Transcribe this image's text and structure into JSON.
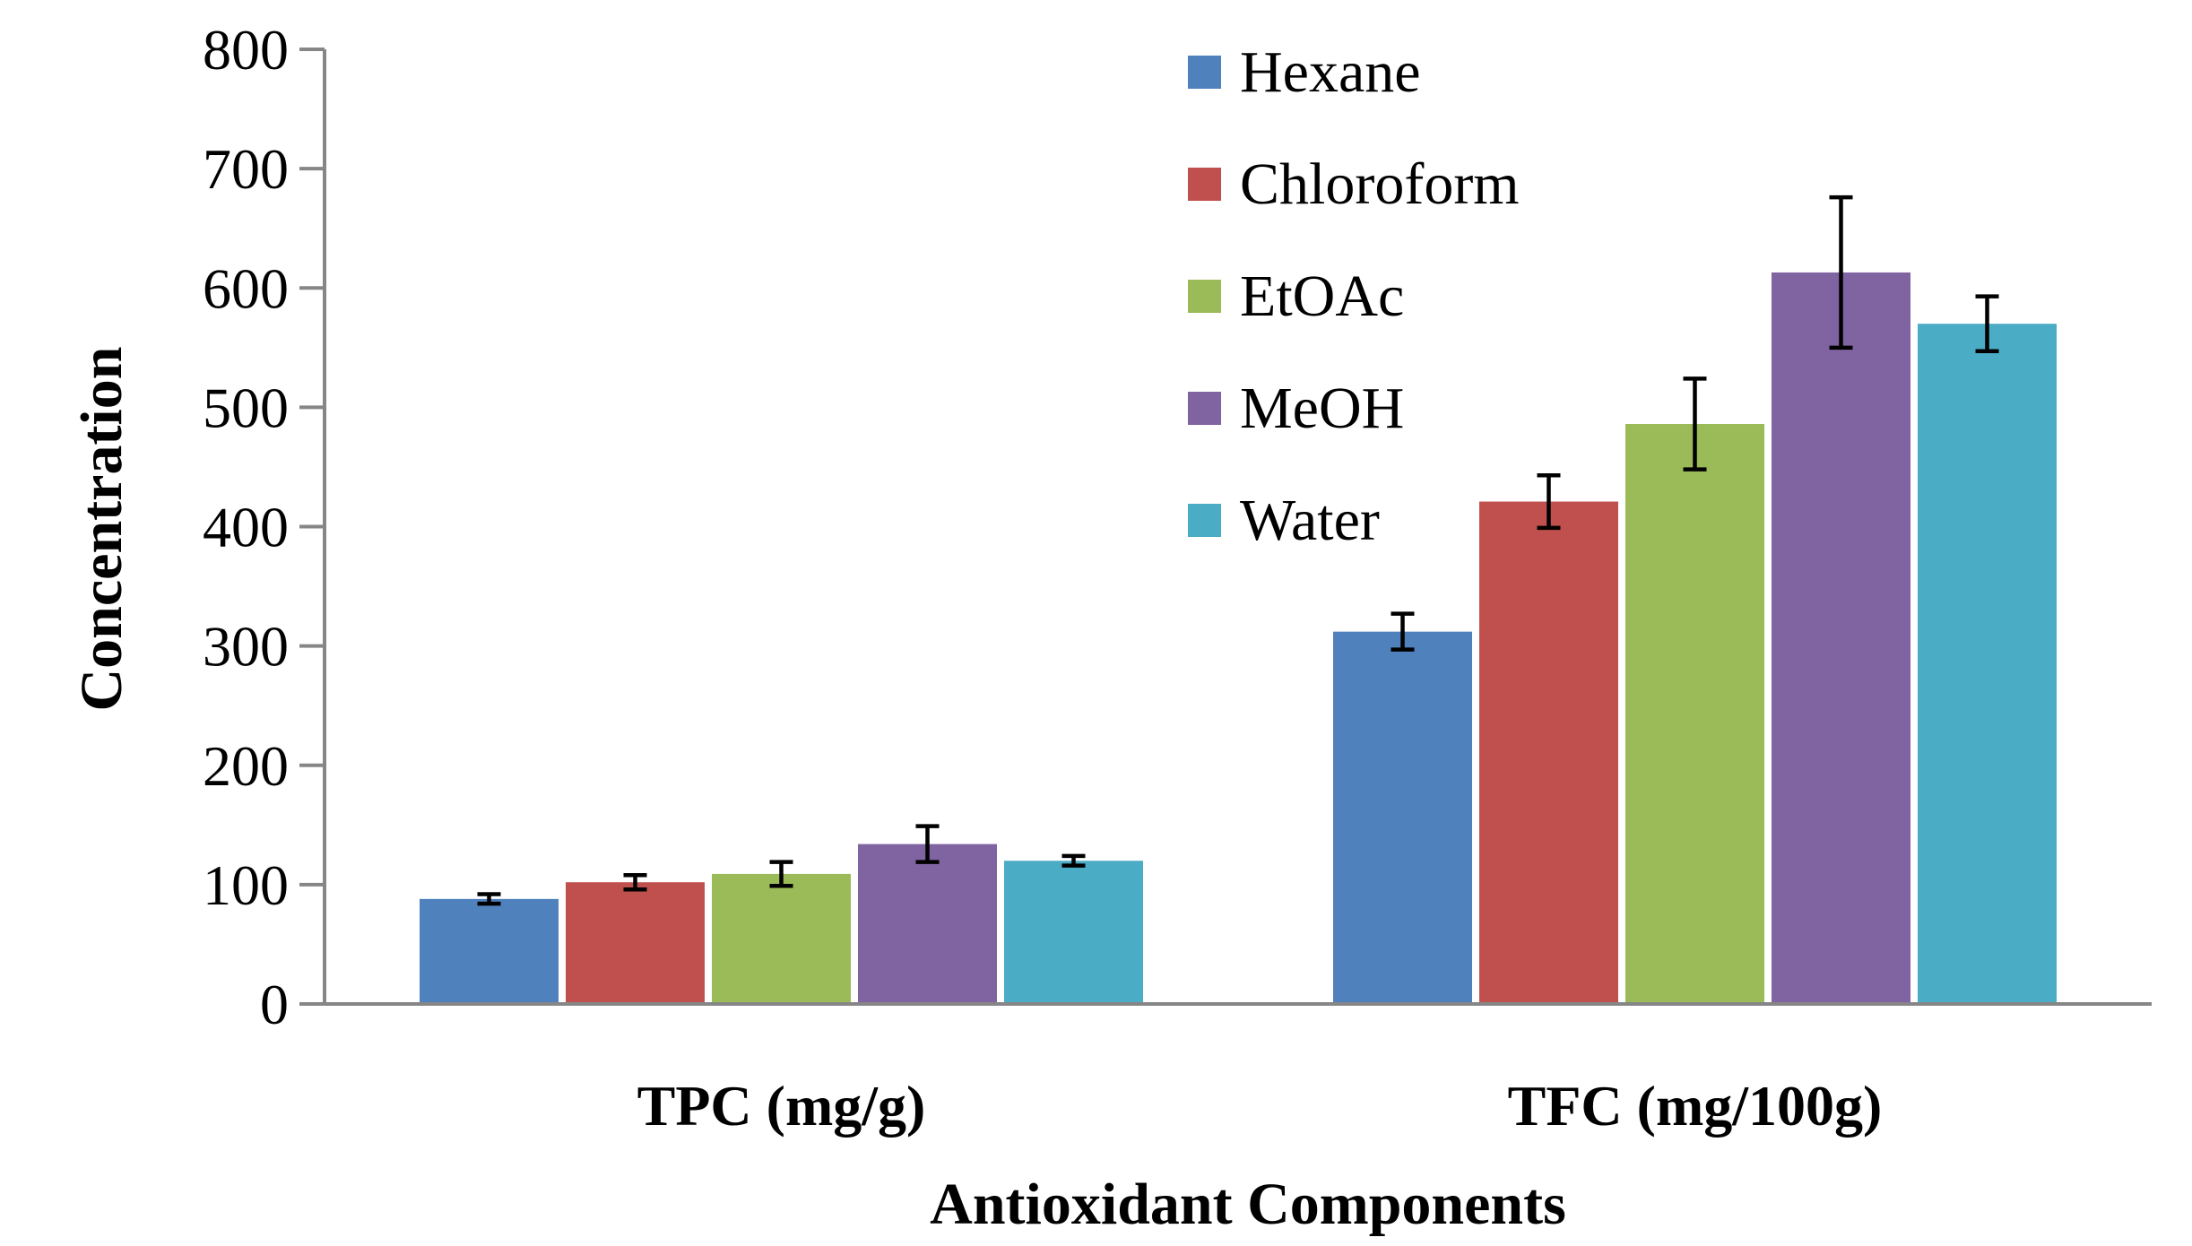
{
  "chart_data": {
    "type": "bar",
    "title": "",
    "xlabel": "Antioxidant Components",
    "ylabel": "Concentration",
    "ylim": [
      0,
      800
    ],
    "yticks": [
      "0",
      "100",
      "200",
      "300",
      "400",
      "500",
      "600",
      "700",
      "800"
    ],
    "categories": [
      "TPC (mg/g)",
      "TFC (mg/100g)"
    ],
    "series": [
      {
        "name": "Hexane",
        "color": "#4F81BD",
        "values": [
          88,
          312
        ],
        "errors": [
          4,
          15
        ]
      },
      {
        "name": "Chloroform",
        "color": "#C0504D",
        "values": [
          102,
          421
        ],
        "errors": [
          6,
          22
        ]
      },
      {
        "name": "EtOAc",
        "color": "#9BBB59",
        "values": [
          109,
          486
        ],
        "errors": [
          10,
          38
        ]
      },
      {
        "name": "MeOH",
        "color": "#8064A2",
        "values": [
          134,
          613
        ],
        "errors": [
          15,
          63
        ]
      },
      {
        "name": "Water",
        "color": "#4BACC6",
        "values": [
          120,
          570
        ],
        "errors": [
          4,
          23
        ]
      }
    ],
    "grid": false,
    "legend": "top-right"
  }
}
